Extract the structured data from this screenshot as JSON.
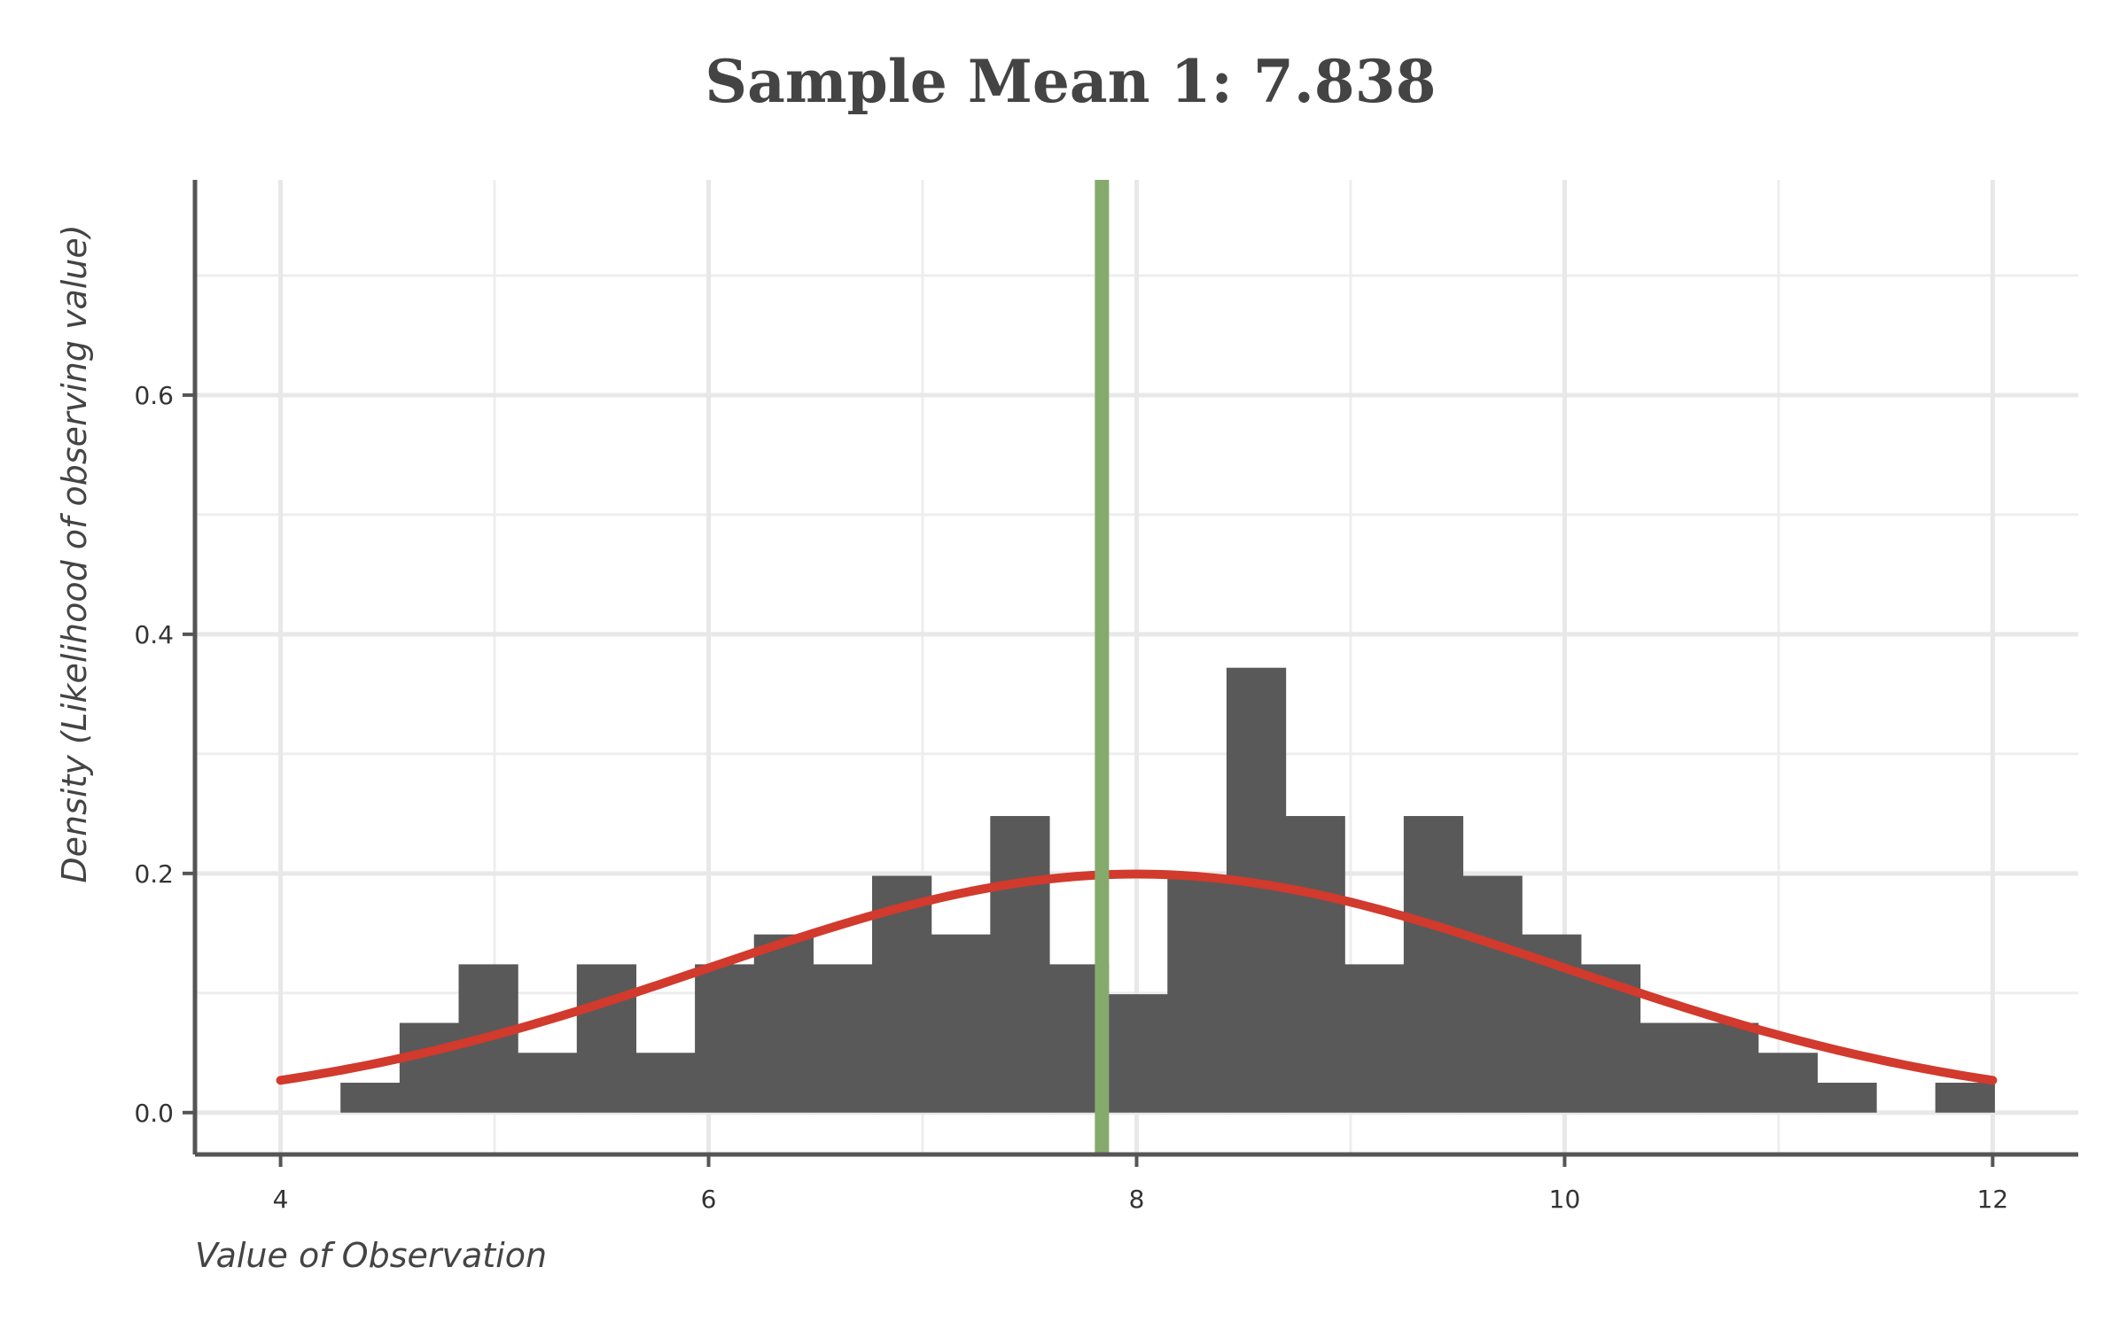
{
  "chart_data": {
    "type": "histogram",
    "title": "Sample Mean 1: 7.838",
    "xlabel": "Value of Observation",
    "ylabel": "Density (Likelihood of observing value)",
    "xlim": [
      3.6,
      12.4
    ],
    "ylim": [
      -0.035,
      0.78
    ],
    "x_ticks": [
      4,
      6,
      8,
      10,
      12
    ],
    "x_tick_labels": [
      "4",
      "6",
      "8",
      "10",
      "12"
    ],
    "y_ticks": [
      0.0,
      0.2,
      0.4,
      0.6
    ],
    "y_tick_labels": [
      "0.0",
      "0.2",
      "0.4",
      "0.6"
    ],
    "grid": true,
    "histogram": {
      "color": "#595959",
      "bin_width": 0.276,
      "bin_starts": [
        4.28,
        4.556,
        4.832,
        5.108,
        5.384,
        5.66,
        5.936,
        6.212,
        6.488,
        6.764,
        7.04,
        7.316,
        7.592,
        7.868,
        8.144,
        8.42,
        8.696,
        8.972,
        9.248,
        9.524,
        9.8,
        10.076,
        10.352,
        10.628,
        10.904,
        11.18,
        11.456,
        11.732
      ],
      "densities": [
        0.025,
        0.075,
        0.124,
        0.05,
        0.124,
        0.05,
        0.124,
        0.149,
        0.124,
        0.198,
        0.149,
        0.248,
        0.124,
        0.099,
        0.198,
        0.372,
        0.248,
        0.124,
        0.248,
        0.198,
        0.149,
        0.124,
        0.075,
        0.075,
        0.05,
        0.025,
        0.0,
        0.025
      ]
    },
    "normal_curve": {
      "mean": 8,
      "sd": 2,
      "color": "#d13a2c"
    },
    "mean_line": {
      "x": 7.838,
      "color": "#86aa6c"
    }
  }
}
